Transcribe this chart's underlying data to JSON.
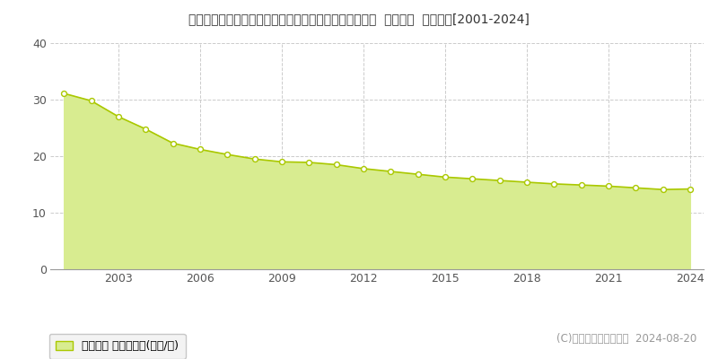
{
  "title": "栃木県河内郡上三川町大字上三川字中町４９５９番２外  地価公示  地価推移[2001-2024]",
  "years": [
    2001,
    2002,
    2003,
    2004,
    2005,
    2006,
    2007,
    2008,
    2009,
    2010,
    2011,
    2012,
    2013,
    2014,
    2015,
    2016,
    2017,
    2018,
    2019,
    2020,
    2021,
    2022,
    2023,
    2024
  ],
  "values": [
    31.1,
    29.8,
    27.0,
    24.8,
    22.3,
    21.2,
    20.3,
    19.5,
    19.0,
    18.9,
    18.5,
    17.8,
    17.3,
    16.8,
    16.3,
    16.0,
    15.7,
    15.4,
    15.1,
    14.9,
    14.7,
    14.4,
    14.1,
    14.2
  ],
  "line_color": "#aac800",
  "fill_color": "#d8ec90",
  "marker_face": "#ffffff",
  "marker_edge": "#aac800",
  "bg_color": "#ffffff",
  "plot_bg_color": "#ffffff",
  "grid_color": "#cccccc",
  "yticks": [
    0,
    10,
    20,
    30,
    40
  ],
  "xticks": [
    2003,
    2006,
    2009,
    2012,
    2015,
    2018,
    2021,
    2024
  ],
  "ylim": [
    0,
    40
  ],
  "xlim_start": 2001,
  "xlim_end": 2024.5,
  "legend_label": "地価公示 平均坪単価(万円/坪)",
  "copyright": "(C)土地価格ドットコム  2024-08-20",
  "title_fontsize": 10,
  "axis_fontsize": 9,
  "legend_fontsize": 9,
  "copyright_fontsize": 8.5
}
